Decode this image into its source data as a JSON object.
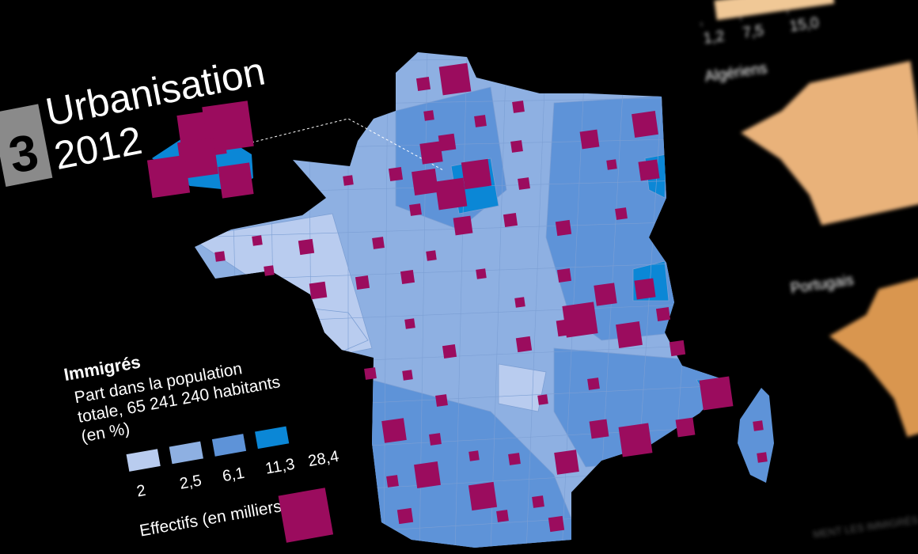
{
  "panel": {
    "number": "3",
    "title": "Urbanisation",
    "year": "2012"
  },
  "legend": {
    "heading": "Immigrés",
    "description": [
      "Part dans la population",
      "totale, 65 241 240 habitants",
      "(en %)"
    ],
    "classes": [
      {
        "value": 2,
        "label": "2"
      },
      {
        "value": 2.5,
        "label": "2,5"
      },
      {
        "value": 6.1,
        "label": "6,1"
      },
      {
        "value": 11.3,
        "label": "11,3"
      },
      {
        "value": 28.4,
        "label": "28,4"
      }
    ],
    "colors": [
      "#b9ccef",
      "#8eb0e2",
      "#5e93d8",
      "#0b87d6"
    ],
    "size_heading": "Effectifs (en milliers)",
    "square_color": "#9b0c5e"
  },
  "side": {
    "scale_ticks": [
      {
        "value": 1.2,
        "label": "1,2"
      },
      {
        "value": 7.5,
        "label": "7,5"
      },
      {
        "value": 15,
        "label": "15,0"
      }
    ],
    "maps": [
      "Algériens",
      "Portugais"
    ]
  },
  "footer": "MENT LES IMMIGRÉS ?"
}
